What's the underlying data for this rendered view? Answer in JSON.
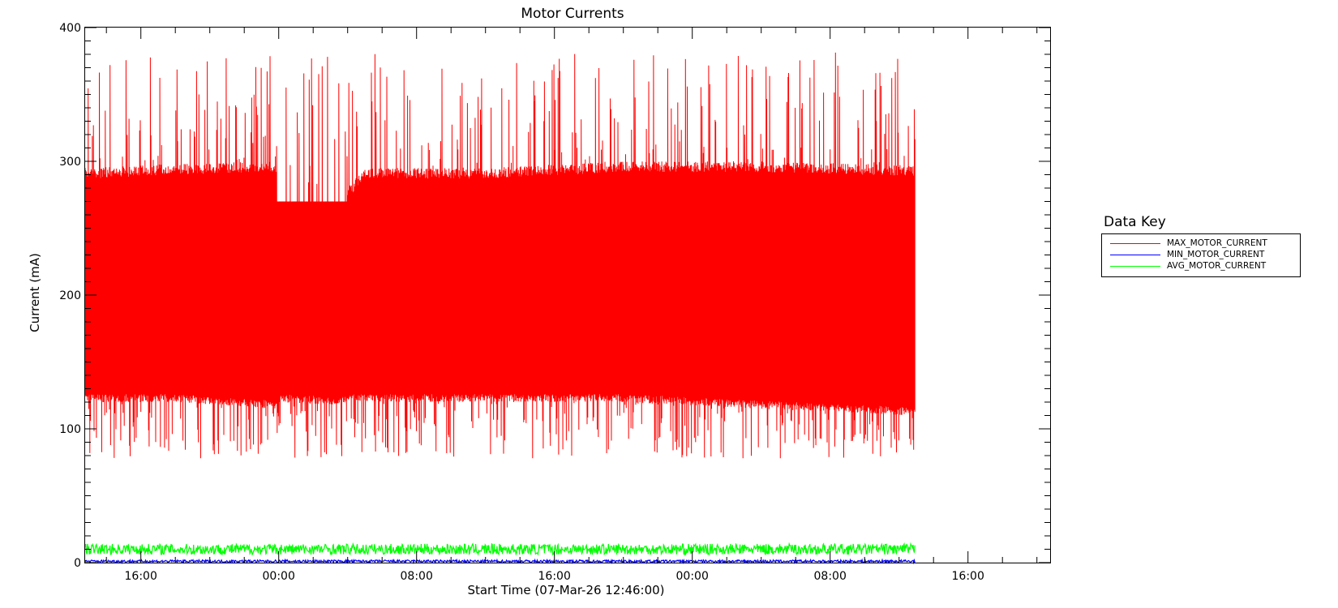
{
  "chart_data": {
    "type": "line",
    "title": "Motor Currents",
    "xlabel": "Start Time (07-Mar-26 12:46:00)",
    "ylabel": "Current (mA)",
    "x_range": [
      "2026-03-07T12:46",
      "2026-03-09T20:46"
    ],
    "ylim": [
      0,
      400
    ],
    "y_ticks": [
      0,
      100,
      200,
      300,
      400
    ],
    "x_ticks": [
      {
        "time": "2026-03-07T16:00",
        "label": "16:00"
      },
      {
        "time": "2026-03-08T00:00",
        "label": "00:00"
      },
      {
        "time": "2026-03-08T08:00",
        "label": "08:00"
      },
      {
        "time": "2026-03-08T16:00",
        "label": "16:00"
      },
      {
        "time": "2026-03-09T00:00",
        "label": "00:00"
      },
      {
        "time": "2026-03-09T08:00",
        "label": "08:00"
      },
      {
        "time": "2026-03-09T16:00",
        "label": "16:00"
      }
    ],
    "data_end": "2026-03-09T12:55",
    "grid": false,
    "legend_title": "Data Key",
    "legend_position": "right",
    "series": [
      {
        "name": "MAX_MOTOR_CURRENT",
        "color": "#ff0000",
        "rendering": "dense oscillating envelope",
        "envelope": [
          {
            "t": "2026-03-07T12:46",
            "low": 120,
            "high": 295
          },
          {
            "t": "2026-03-07T18:00",
            "low": 120,
            "high": 298
          },
          {
            "t": "2026-03-07T23:50",
            "low": 115,
            "high": 300
          },
          {
            "t": "2026-03-07T23:55",
            "low": 120,
            "high": 232
          },
          {
            "t": "2026-03-08T03:30",
            "low": 118,
            "high": 232
          },
          {
            "t": "2026-03-08T04:00",
            "low": 120,
            "high": 280
          },
          {
            "t": "2026-03-08T05:00",
            "low": 120,
            "high": 295
          },
          {
            "t": "2026-03-08T12:00",
            "low": 120,
            "high": 295
          },
          {
            "t": "2026-03-08T20:00",
            "low": 120,
            "high": 300
          },
          {
            "t": "2026-03-09T04:00",
            "low": 115,
            "high": 300
          },
          {
            "t": "2026-03-09T12:55",
            "low": 110,
            "high": 297
          }
        ],
        "observed_range": [
          78,
          382
        ]
      },
      {
        "name": "MIN_MOTOR_CURRENT",
        "color": "#0000ff",
        "rendering": "thin band",
        "typical": 1,
        "observed_range": [
          0,
          2
        ]
      },
      {
        "name": "AVG_MOTOR_CURRENT",
        "color": "#00ff00",
        "rendering": "thin band",
        "typical": 9,
        "observed_range": [
          6,
          14
        ]
      }
    ]
  }
}
